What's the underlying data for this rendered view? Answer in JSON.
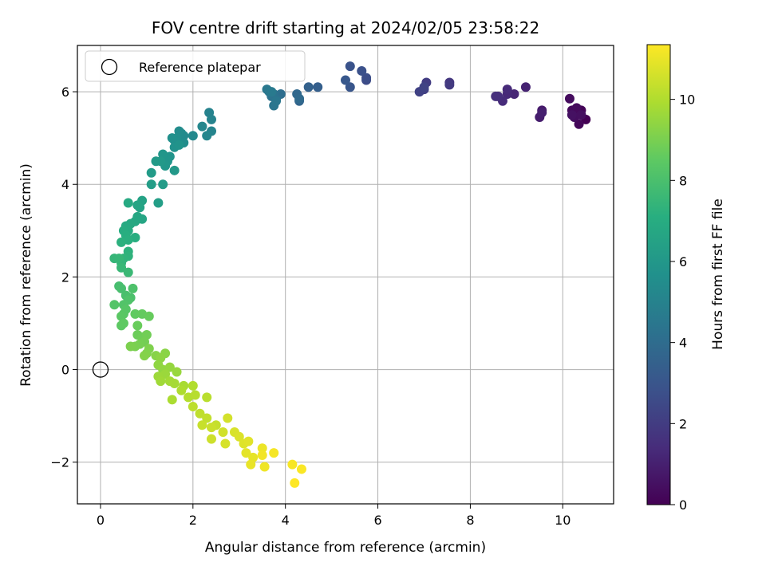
{
  "chart_data": {
    "type": "scatter",
    "title": "FOV centre drift starting at 2024/02/05 23:58:22",
    "xlabel": "Angular distance from reference (arcmin)",
    "ylabel": "Rotation from reference (arcmin)",
    "colorbar_label": "Hours from first FF file",
    "colormap": "viridis",
    "xlim": [
      -0.5,
      11.1
    ],
    "ylim": [
      -2.9,
      7.0
    ],
    "clim": [
      0,
      11.35
    ],
    "xticks": [
      0,
      2,
      4,
      6,
      8,
      10
    ],
    "yticks": [
      -2,
      0,
      2,
      4,
      6
    ],
    "colorbar_ticks": [
      0,
      2,
      4,
      6,
      8,
      10
    ],
    "grid": true,
    "legend": {
      "placement": "top-left",
      "label": "Reference platepar"
    },
    "reference_point": {
      "x": 0,
      "y": 0
    },
    "points": [
      [
        10.5,
        5.4,
        0.0
      ],
      [
        10.4,
        5.6,
        0.1
      ],
      [
        10.3,
        5.5,
        0.15
      ],
      [
        10.35,
        5.3,
        0.2
      ],
      [
        10.2,
        5.6,
        0.25
      ],
      [
        10.3,
        5.65,
        0.3
      ],
      [
        10.15,
        5.85,
        0.35
      ],
      [
        10.25,
        5.45,
        0.4
      ],
      [
        10.4,
        5.5,
        0.45
      ],
      [
        10.2,
        5.5,
        0.5
      ],
      [
        9.55,
        5.6,
        0.8
      ],
      [
        9.5,
        5.45,
        0.9
      ],
      [
        9.55,
        5.55,
        1.0
      ],
      [
        9.2,
        6.1,
        1.1
      ],
      [
        8.95,
        5.95,
        1.2
      ],
      [
        8.8,
        5.95,
        1.3
      ],
      [
        8.8,
        6.05,
        1.35
      ],
      [
        8.7,
        5.8,
        1.4
      ],
      [
        8.6,
        5.9,
        1.5
      ],
      [
        8.55,
        5.9,
        1.55
      ],
      [
        7.55,
        6.2,
        1.8
      ],
      [
        7.55,
        6.15,
        1.9
      ],
      [
        7.05,
        6.2,
        2.0
      ],
      [
        7.0,
        6.05,
        2.1
      ],
      [
        6.9,
        6.0,
        2.2
      ],
      [
        7.0,
        6.1,
        2.25
      ],
      [
        5.75,
        6.25,
        2.6
      ],
      [
        5.75,
        6.3,
        2.7
      ],
      [
        5.65,
        6.45,
        2.8
      ],
      [
        5.4,
        6.55,
        2.9
      ],
      [
        5.4,
        6.1,
        3.0
      ],
      [
        5.3,
        6.25,
        3.1
      ],
      [
        4.7,
        6.1,
        3.4
      ],
      [
        4.5,
        6.1,
        3.5
      ],
      [
        4.3,
        5.8,
        3.7
      ],
      [
        4.25,
        5.95,
        3.8
      ],
      [
        4.3,
        5.85,
        3.9
      ],
      [
        3.9,
        5.95,
        4.1
      ],
      [
        3.8,
        5.85,
        4.2
      ],
      [
        3.75,
        5.95,
        4.25
      ],
      [
        3.7,
        5.9,
        4.3
      ],
      [
        3.75,
        5.7,
        4.4
      ],
      [
        3.8,
        5.8,
        4.45
      ],
      [
        3.65,
        6.0,
        4.5
      ],
      [
        3.6,
        6.05,
        4.55
      ],
      [
        3.7,
        6.0,
        4.6
      ],
      [
        2.35,
        5.55,
        5.0
      ],
      [
        2.4,
        5.4,
        5.05
      ],
      [
        2.4,
        5.15,
        5.1
      ],
      [
        2.3,
        5.05,
        5.15
      ],
      [
        2.2,
        5.25,
        5.2
      ],
      [
        2.0,
        5.05,
        5.3
      ],
      [
        1.8,
        5.05,
        5.35
      ],
      [
        1.75,
        5.1,
        5.4
      ],
      [
        1.7,
        5.15,
        5.45
      ],
      [
        1.8,
        4.9,
        5.5
      ],
      [
        1.65,
        5.0,
        5.55
      ],
      [
        1.6,
        4.95,
        5.6
      ],
      [
        1.55,
        5.0,
        5.65
      ],
      [
        1.6,
        4.8,
        5.7
      ],
      [
        1.7,
        4.85,
        5.75
      ],
      [
        1.5,
        4.6,
        5.8
      ],
      [
        1.45,
        4.5,
        5.85
      ],
      [
        1.35,
        4.65,
        5.9
      ],
      [
        1.4,
        4.4,
        5.95
      ],
      [
        1.6,
        4.3,
        6.0
      ],
      [
        1.3,
        4.5,
        6.05
      ],
      [
        1.2,
        4.5,
        6.1
      ],
      [
        1.1,
        4.25,
        6.15
      ],
      [
        1.35,
        4.0,
        6.2
      ],
      [
        1.1,
        4.0,
        6.25
      ],
      [
        1.25,
        3.6,
        6.3
      ],
      [
        0.9,
        3.65,
        6.5
      ],
      [
        0.85,
        3.5,
        6.55
      ],
      [
        0.8,
        3.55,
        6.6
      ],
      [
        0.9,
        3.25,
        6.65
      ],
      [
        0.8,
        3.3,
        6.7
      ],
      [
        0.75,
        3.2,
        6.75
      ],
      [
        0.65,
        3.15,
        6.8
      ],
      [
        0.6,
        3.6,
        6.85
      ],
      [
        0.55,
        3.1,
        6.9
      ],
      [
        0.6,
        3.0,
        6.95
      ],
      [
        0.5,
        3.0,
        7.0
      ],
      [
        0.75,
        2.85,
        7.05
      ],
      [
        0.55,
        2.9,
        7.1
      ],
      [
        0.6,
        2.8,
        7.15
      ],
      [
        0.45,
        2.75,
        7.2
      ],
      [
        0.6,
        2.55,
        7.25
      ],
      [
        0.6,
        2.45,
        7.3
      ],
      [
        0.5,
        2.4,
        7.35
      ],
      [
        0.45,
        2.3,
        7.4
      ],
      [
        0.3,
        2.4,
        7.45
      ],
      [
        0.4,
        2.4,
        7.5
      ],
      [
        0.45,
        2.2,
        7.55
      ],
      [
        0.6,
        2.1,
        7.6
      ],
      [
        0.4,
        1.8,
        7.9
      ],
      [
        0.45,
        1.75,
        7.95
      ],
      [
        0.55,
        1.6,
        8.0
      ],
      [
        0.65,
        1.55,
        8.05
      ],
      [
        0.7,
        1.75,
        8.1
      ],
      [
        0.6,
        1.5,
        8.15
      ],
      [
        0.5,
        1.4,
        8.2
      ],
      [
        0.3,
        1.4,
        8.25
      ],
      [
        0.55,
        1.3,
        8.3
      ],
      [
        0.5,
        1.2,
        8.35
      ],
      [
        0.45,
        1.15,
        8.4
      ],
      [
        0.45,
        0.95,
        8.45
      ],
      [
        0.5,
        1.0,
        8.5
      ],
      [
        0.75,
        1.2,
        8.55
      ],
      [
        0.9,
        1.2,
        8.6
      ],
      [
        1.05,
        1.15,
        8.65
      ],
      [
        0.8,
        0.95,
        8.7
      ],
      [
        0.8,
        0.75,
        8.75
      ],
      [
        0.9,
        0.7,
        8.8
      ],
      [
        1.0,
        0.75,
        8.85
      ],
      [
        0.95,
        0.6,
        8.9
      ],
      [
        0.85,
        0.55,
        8.95
      ],
      [
        0.75,
        0.5,
        9.0
      ],
      [
        0.65,
        0.5,
        9.05
      ],
      [
        1.05,
        0.45,
        9.1
      ],
      [
        1.0,
        0.35,
        9.15
      ],
      [
        0.95,
        0.3,
        9.2
      ],
      [
        1.2,
        0.3,
        9.25
      ],
      [
        1.4,
        0.35,
        9.3
      ],
      [
        1.3,
        0.25,
        9.35
      ],
      [
        1.25,
        0.1,
        9.4
      ],
      [
        1.35,
        0.0,
        9.45
      ],
      [
        1.5,
        0.05,
        9.5
      ],
      [
        1.65,
        -0.05,
        9.55
      ],
      [
        1.4,
        -0.1,
        9.6
      ],
      [
        1.25,
        -0.15,
        9.65
      ],
      [
        1.3,
        -0.25,
        9.7
      ],
      [
        1.5,
        -0.25,
        9.75
      ],
      [
        1.6,
        -0.3,
        9.8
      ],
      [
        1.8,
        -0.35,
        9.85
      ],
      [
        1.55,
        -0.65,
        9.9
      ],
      [
        1.75,
        -0.45,
        9.95
      ],
      [
        2.0,
        -0.35,
        10.0
      ],
      [
        1.9,
        -0.6,
        10.05
      ],
      [
        2.05,
        -0.55,
        10.1
      ],
      [
        2.3,
        -0.6,
        10.15
      ],
      [
        2.0,
        -0.8,
        10.2
      ],
      [
        2.15,
        -0.95,
        10.25
      ],
      [
        2.3,
        -1.05,
        10.3
      ],
      [
        2.5,
        -1.2,
        10.35
      ],
      [
        2.2,
        -1.2,
        10.4
      ],
      [
        2.4,
        -1.25,
        10.45
      ],
      [
        2.4,
        -1.5,
        10.5
      ],
      [
        2.65,
        -1.35,
        10.55
      ],
      [
        2.75,
        -1.05,
        10.6
      ],
      [
        2.7,
        -1.6,
        10.65
      ],
      [
        2.9,
        -1.35,
        10.7
      ],
      [
        3.0,
        -1.45,
        10.75
      ],
      [
        3.1,
        -1.6,
        10.8
      ],
      [
        3.2,
        -1.55,
        10.85
      ],
      [
        3.15,
        -1.8,
        10.9
      ],
      [
        3.3,
        -1.9,
        10.95
      ],
      [
        3.25,
        -2.05,
        11.0
      ],
      [
        3.5,
        -1.7,
        11.05
      ],
      [
        3.55,
        -2.1,
        11.1
      ],
      [
        3.5,
        -1.85,
        11.15
      ],
      [
        3.75,
        -1.8,
        11.2
      ],
      [
        4.15,
        -2.05,
        11.25
      ],
      [
        4.35,
        -2.15,
        11.3
      ],
      [
        4.2,
        -2.45,
        11.35
      ]
    ]
  }
}
